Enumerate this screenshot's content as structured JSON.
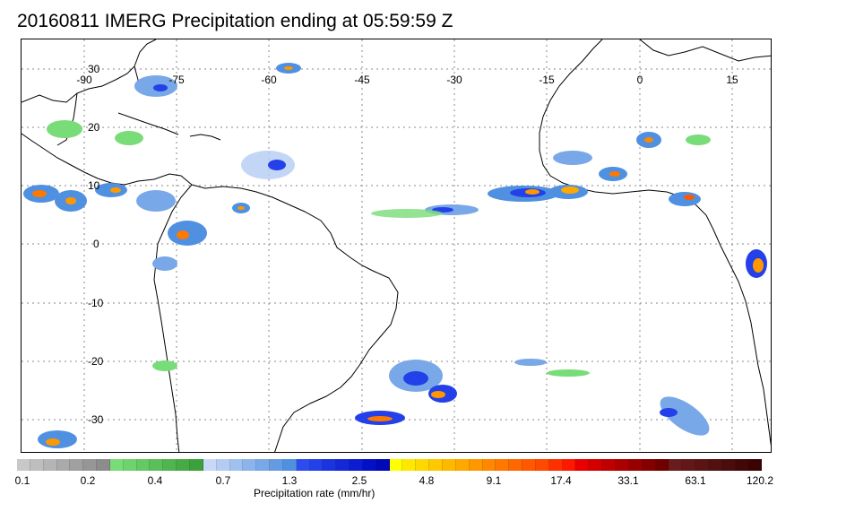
{
  "title": "20160811 IMERG Precipitation ending at 05:59:59 Z",
  "map": {
    "lon_labels": [
      "-90",
      "-75",
      "-60",
      "-45",
      "-30",
      "-15",
      "0",
      "15"
    ],
    "lat_labels": [
      "30",
      "20",
      "10",
      "0",
      "-10",
      "-20",
      "-30"
    ]
  },
  "colorbar": {
    "title": "Precipitation rate (mm/hr)",
    "tick_labels": [
      "0.1",
      "0.2",
      "0.4",
      "0.7",
      "1.3",
      "2.5",
      "4.8",
      "9.1",
      "17.4",
      "33.1",
      "63.1",
      "120.2"
    ],
    "colors": [
      "#c8c8c8",
      "#bebebe",
      "#b4b4b4",
      "#aaaaaa",
      "#a0a0a0",
      "#969696",
      "#8c8c8c",
      "#78dc78",
      "#6ed26e",
      "#64c864",
      "#5abe5a",
      "#50b450",
      "#46aa46",
      "#3ca03c",
      "#c8d8f8",
      "#b4ccf4",
      "#a0c0f0",
      "#8cb4ec",
      "#78a8e8",
      "#649ce4",
      "#5090e0",
      "#2c4cf0",
      "#2440e8",
      "#1c34e0",
      "#1428d8",
      "#0c1cd0",
      "#0410c8",
      "#0008b8",
      "#ffff00",
      "#ffe800",
      "#ffd800",
      "#ffc800",
      "#ffb800",
      "#ffa800",
      "#ff9800",
      "#ff8800",
      "#ff7800",
      "#ff6800",
      "#ff5800",
      "#ff4800",
      "#ff3000",
      "#ff1800",
      "#e80000",
      "#d40000",
      "#c00000",
      "#ac0000",
      "#980000",
      "#840000",
      "#700000",
      "#6a1c1c",
      "#621818",
      "#5a1414",
      "#521010",
      "#4a0c0c",
      "#420808",
      "#3a0404"
    ]
  }
}
